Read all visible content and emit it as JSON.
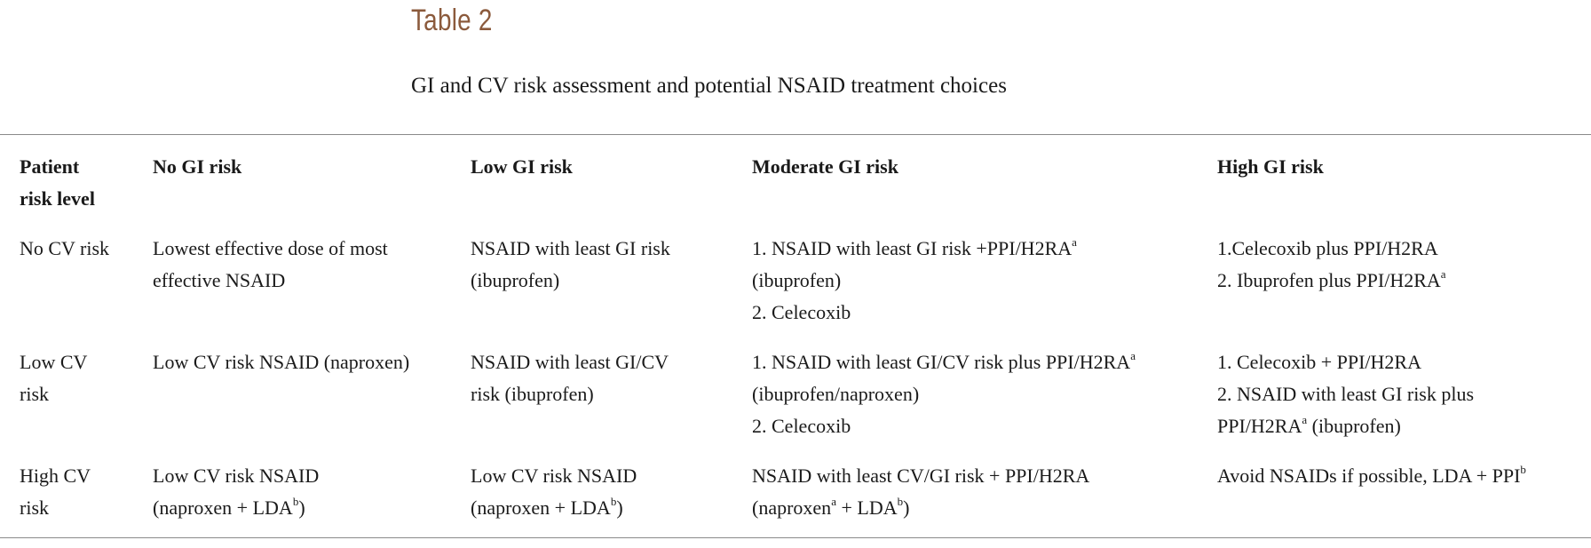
{
  "table_label": "Table 2",
  "caption": "GI and CV risk assessment and potential NSAID treatment choices",
  "headers": {
    "c0_line1": "Patient",
    "c0_line2": "risk level",
    "c1": "No GI risk",
    "c2": "Low GI risk",
    "c3": "Moderate GI risk",
    "c4": "High GI risk"
  },
  "rows": [
    {
      "label_l1": "No CV risk",
      "c1_l1": "Lowest effective dose of most",
      "c1_l2": "effective NSAID",
      "c2_l1": "NSAID with least GI risk",
      "c2_l2": "(ibuprofen)",
      "c3_l1": "1. NSAID with least GI risk +PPI/H2RA",
      "c3_l1_sup": "a",
      "c3_l2": "(ibuprofen)",
      "c3_l3": "2. Celecoxib",
      "c4_l1": "1.Celecoxib plus PPI/H2RA",
      "c4_l2": "2. Ibuprofen plus PPI/H2RA",
      "c4_l2_sup": "a"
    },
    {
      "label_l1": "Low CV",
      "label_l2": "risk",
      "c1_l1": "Low CV risk NSAID (naproxen)",
      "c2_l1": "NSAID with least GI/CV",
      "c2_l2": "risk (ibuprofen)",
      "c3_l1": "1. NSAID with least GI/CV risk plus PPI/H2RA",
      "c3_l1_sup": "a",
      "c3_l2": "(ibuprofen/naproxen)",
      "c3_l3": "2. Celecoxib",
      "c4_l1": "1. Celecoxib + PPI/H2RA",
      "c4_l2": "2. NSAID with least GI risk plus",
      "c4_l3a": "PPI/H2RA",
      "c4_l3_sup": "a",
      "c4_l3b": " (ibuprofen)"
    },
    {
      "label_l1": "High CV",
      "label_l2": "risk",
      "c1_l1": "Low CV risk NSAID",
      "c1_l2a": "(naproxen + LDA",
      "c1_l2_sup": "b",
      "c1_l2b": ")",
      "c2_l1": "Low CV risk NSAID",
      "c2_l2a": "(naproxen + LDA",
      "c2_l2_sup": "b",
      "c2_l2b": ")",
      "c3_l1": "NSAID with least CV/GI risk + PPI/H2RA",
      "c3_l2a": "(naproxen",
      "c3_l2_sup1": "a",
      "c3_l2b": " + LDA",
      "c3_l2_sup2": "b",
      "c3_l2c": ")",
      "c4_l1": "Avoid NSAIDs if possible, LDA + PPI",
      "c4_l1_sup": "b"
    }
  ]
}
